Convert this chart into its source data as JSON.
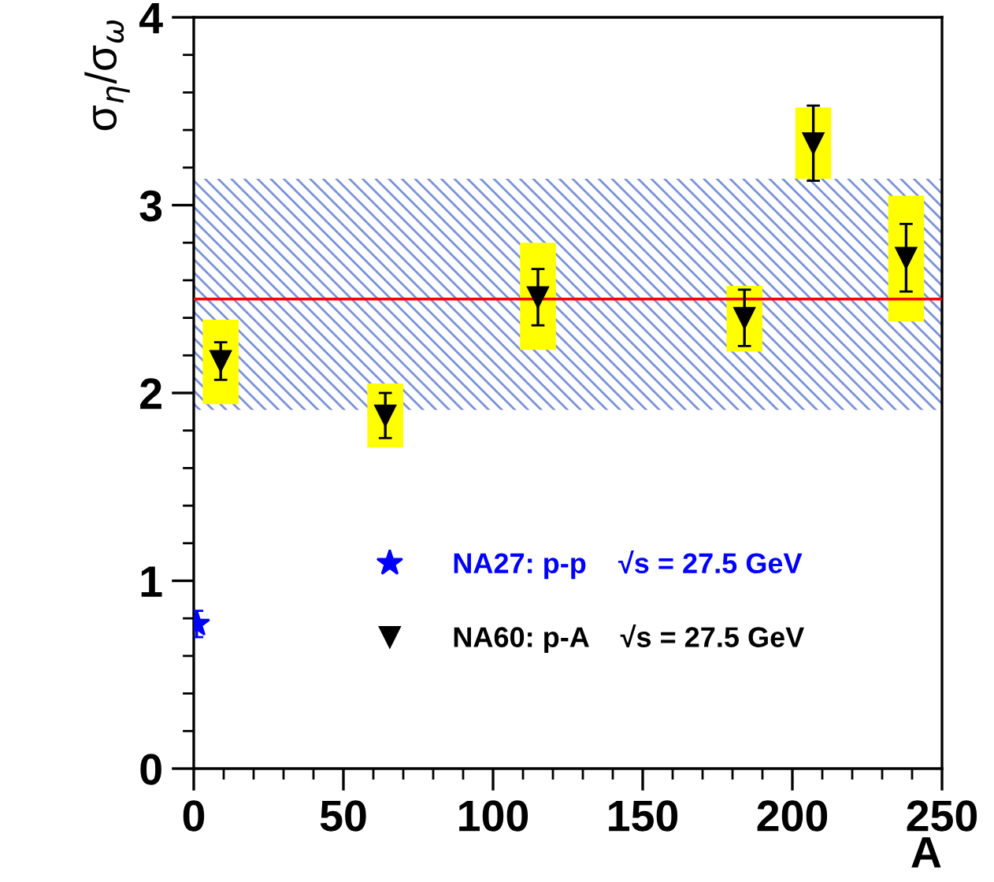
{
  "chart_data": {
    "type": "scatter",
    "xlabel": "A",
    "ylabel": "σ$_{η}$/σ$_{ω}$",
    "xlim": [
      0,
      250
    ],
    "ylim": [
      0,
      4
    ],
    "xticks": [
      0,
      50,
      100,
      150,
      200,
      250
    ],
    "yticks": [
      0,
      1,
      2,
      3,
      4
    ],
    "grid": false,
    "legend": "bottom",
    "tick_labels": true,
    "bands": [
      {
        "axis": "y",
        "from": 1.91,
        "to": 3.14,
        "color": "#7b93d8"
      }
    ],
    "ref_lines": [
      {
        "axis": "y",
        "value": 2.5,
        "color": "#ff0000"
      }
    ],
    "series": [
      {
        "type": "bar",
        "color": "#ffff00",
        "x": [
          9,
          64,
          115,
          184,
          207,
          238
        ],
        "base": [
          1.94,
          1.71,
          2.23,
          2.22,
          3.14,
          2.38
        ],
        "values": [
          0.45,
          0.34,
          0.57,
          0.35,
          0.38,
          0.67
        ]
      },
      {
        "name": "NA27: p-p    √s = 27.5 GeV",
        "color": "#0000ff",
        "marker": "star",
        "x": [
          1
        ],
        "values": [
          0.77
        ],
        "errors": [
          0.07
        ]
      },
      {
        "name": "NA60: p-A    √s = 27.5 GeV",
        "color": "#000000",
        "marker": "triangle",
        "x": [
          9,
          64,
          115,
          184,
          207,
          238
        ],
        "values": [
          2.17,
          1.88,
          2.51,
          2.4,
          3.33,
          2.72
        ],
        "errors": [
          0.1,
          0.12,
          0.15,
          0.15,
          0.2,
          0.18
        ]
      }
    ]
  }
}
